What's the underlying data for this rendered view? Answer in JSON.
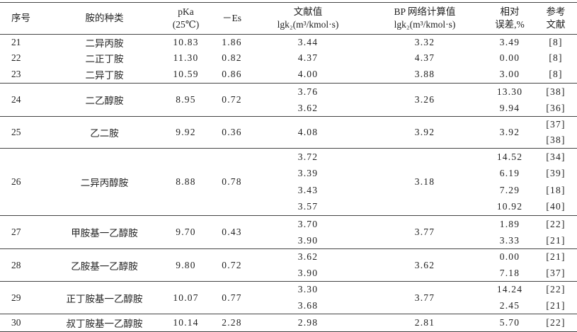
{
  "header": [
    [
      "序号"
    ],
    [
      "胺的种类"
    ],
    [
      "pKa",
      "(25℃)"
    ],
    [
      "－Es"
    ],
    [
      "文献值",
      "lgk₂(m³/kmol·s)"
    ],
    [
      "BP 网络计算值",
      "lgk₂(m³/kmol·s)"
    ],
    [
      "相对",
      "误差,%"
    ],
    [
      "参考",
      "文献"
    ]
  ],
  "rows": [
    {
      "no": "21",
      "amine": "二异丙胺",
      "pka": "10.83",
      "es": "1.86",
      "lit": [
        "3.44"
      ],
      "bp": "3.32",
      "err": [
        "3.49"
      ],
      "ref": [
        "[8]"
      ]
    },
    {
      "no": "22",
      "amine": "二正丁胺",
      "pka": "11.30",
      "es": "0.82",
      "lit": [
        "4.37"
      ],
      "bp": "4.37",
      "err": [
        "0.00"
      ],
      "ref": [
        "[8]"
      ]
    },
    {
      "no": "23",
      "amine": "二异丁胺",
      "pka": "10.59",
      "es": "0.86",
      "lit": [
        "4.00"
      ],
      "bp": "3.88",
      "err": [
        "3.00"
      ],
      "ref": [
        "[8]"
      ]
    },
    {
      "no": "24",
      "amine": "二乙醇胺",
      "pka": "8.95",
      "es": "0.72",
      "lit": [
        "3.76",
        "3.62"
      ],
      "bp": "3.26",
      "err": [
        "13.30",
        "9.94"
      ],
      "ref": [
        "[38]",
        "[36]"
      ]
    },
    {
      "no": "25",
      "amine": "乙二胺",
      "pka": "9.92",
      "es": "0.36",
      "lit": [
        "4.08"
      ],
      "bp": "3.92",
      "err": [
        "3.92"
      ],
      "ref": [
        "[37]",
        "[38]"
      ]
    },
    {
      "no": "26",
      "amine": "二异丙醇胺",
      "pka": "8.88",
      "es": "0.78",
      "lit": [
        "3.72",
        "3.39",
        "3.43",
        "3.57"
      ],
      "bp": "3.18",
      "err": [
        "14.52",
        "6.19",
        "7.29",
        "10.92"
      ],
      "ref": [
        "[34]",
        "[39]",
        "[18]",
        "[40]"
      ]
    },
    {
      "no": "27",
      "amine": "甲胺基一乙醇胺",
      "pka": "9.70",
      "es": "0.43",
      "lit": [
        "3.70",
        "3.90"
      ],
      "bp": "3.77",
      "err": [
        "1.89",
        "3.33"
      ],
      "ref": [
        "[22]",
        "[21]"
      ]
    },
    {
      "no": "28",
      "amine": "乙胺基一乙醇胺",
      "pka": "9.80",
      "es": "0.72",
      "lit": [
        "3.62",
        "3.90"
      ],
      "bp": "3.62",
      "err": [
        "0.00",
        "7.18"
      ],
      "ref": [
        "[21]",
        "[37]"
      ]
    },
    {
      "no": "29",
      "amine": "正丁胺基一乙醇胺",
      "pka": "10.07",
      "es": "0.77",
      "lit": [
        "3.30",
        "3.68"
      ],
      "bp": "3.77",
      "err": [
        "14.24",
        "2.45"
      ],
      "ref": [
        "[22]",
        "[21]"
      ]
    },
    {
      "no": "30",
      "amine": "叔丁胺基一乙醇胺",
      "pka": "10.14",
      "es": "2.28",
      "lit": [
        "2.98"
      ],
      "bp": "2.81",
      "err": [
        "5.70"
      ],
      "ref": [
        "[22]"
      ]
    }
  ]
}
